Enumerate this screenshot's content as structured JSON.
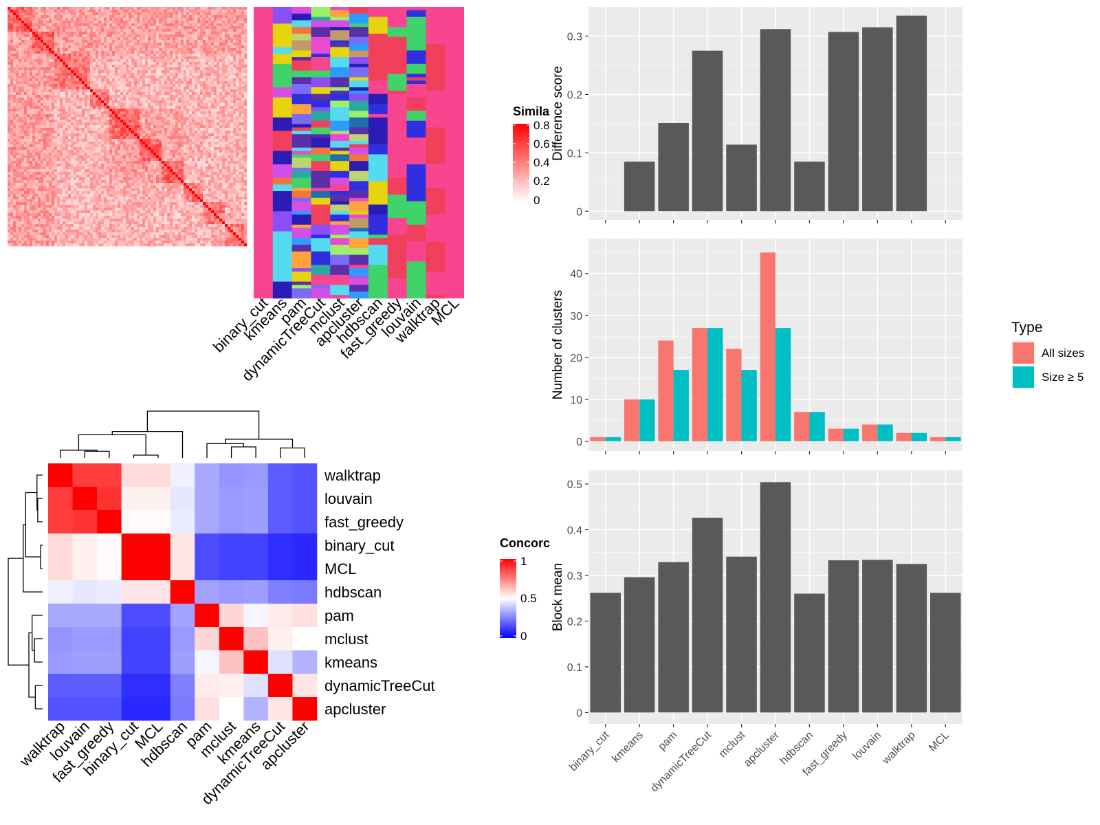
{
  "figure": {
    "similarity_panel": {
      "legend_title": "Simila",
      "legend_ticks": [
        "0.8",
        "0.6",
        "0.4",
        "0.2",
        "0"
      ],
      "legend_colors": [
        "#ffffff",
        "#ff0000"
      ],
      "method_labels": [
        "binary_cut",
        "kmeans",
        "pam",
        "dynamicTreeCut",
        "mclust",
        "apcluster",
        "hdbscan",
        "fast_greedy",
        "louvain",
        "walktrap",
        "MCL"
      ],
      "cluster_palette": [
        "#f94590",
        "#f0405b",
        "#3fd36a",
        "#2f2fe0",
        "#e6d40d",
        "#55dbf0",
        "#2a1cb4",
        "#8a4ff5",
        "#d24fe8",
        "#f2743f",
        "#1d6fb0",
        "#9df06a",
        "#c09a68",
        "#2c9cff",
        "#ffa33c",
        "#5a2fa8",
        "#2aa9a0",
        "#e84bd0",
        "#bcd56f",
        "#7a6cf6"
      ]
    },
    "concordance_panel": {
      "legend_title": "Concorc",
      "legend_ticks": [
        "1",
        "0.5",
        "0"
      ],
      "legend_colors": [
        "#0000ff",
        "#ffffff",
        "#ff0000"
      ]
    }
  },
  "chart_data": [
    {
      "type": "heatmap",
      "title": "",
      "description_of_content": "Method-by-method concordance matrix with hierarchical clustering dendrograms on top and left",
      "rows": [
        "walktrap",
        "louvain",
        "fast_greedy",
        "binary_cut",
        "MCL",
        "hdbscan",
        "pam",
        "mclust",
        "kmeans",
        "dynamicTreeCut",
        "apcluster"
      ],
      "columns": [
        "walktrap",
        "louvain",
        "fast_greedy",
        "binary_cut",
        "MCL",
        "hdbscan",
        "pam",
        "mclust",
        "kmeans",
        "dynamicTreeCut",
        "apcluster"
      ],
      "values": [
        [
          1.0,
          0.88,
          0.88,
          0.57,
          0.57,
          0.47,
          0.33,
          0.29,
          0.3,
          0.18,
          0.16
        ],
        [
          0.88,
          1.0,
          0.9,
          0.53,
          0.53,
          0.45,
          0.33,
          0.3,
          0.31,
          0.18,
          0.16
        ],
        [
          0.88,
          0.9,
          1.0,
          0.51,
          0.51,
          0.46,
          0.33,
          0.3,
          0.31,
          0.18,
          0.16
        ],
        [
          0.57,
          0.53,
          0.51,
          1.0,
          1.0,
          0.55,
          0.15,
          0.13,
          0.13,
          0.09,
          0.08
        ],
        [
          0.57,
          0.53,
          0.51,
          1.0,
          1.0,
          0.55,
          0.15,
          0.13,
          0.13,
          0.09,
          0.08
        ],
        [
          0.47,
          0.45,
          0.46,
          0.55,
          0.55,
          1.0,
          0.32,
          0.3,
          0.31,
          0.25,
          0.24
        ],
        [
          0.33,
          0.33,
          0.33,
          0.15,
          0.15,
          0.32,
          1.0,
          0.58,
          0.48,
          0.54,
          0.56
        ],
        [
          0.29,
          0.3,
          0.3,
          0.13,
          0.13,
          0.3,
          0.58,
          1.0,
          0.62,
          0.53,
          0.5
        ],
        [
          0.3,
          0.31,
          0.31,
          0.13,
          0.13,
          0.31,
          0.48,
          0.62,
          1.0,
          0.44,
          0.35
        ],
        [
          0.18,
          0.18,
          0.18,
          0.09,
          0.09,
          0.25,
          0.54,
          0.53,
          0.44,
          1.0,
          0.55
        ],
        [
          0.16,
          0.16,
          0.16,
          0.08,
          0.08,
          0.24,
          0.56,
          0.5,
          0.35,
          0.55,
          1.0
        ]
      ],
      "scale": {
        "min": 0,
        "max": 1,
        "mid": 0.5
      }
    },
    {
      "type": "bar",
      "title": "",
      "categories": [
        "binary_cut",
        "kmeans",
        "pam",
        "dynamicTreeCut",
        "mclust",
        "apcluster",
        "hdbscan",
        "fast_greedy",
        "louvain",
        "walktrap",
        "MCL"
      ],
      "values": [
        0.0,
        0.085,
        0.151,
        0.275,
        0.114,
        0.312,
        0.085,
        0.307,
        0.315,
        0.335,
        0.0
      ],
      "xlabel": "",
      "ylabel": "Difference score",
      "ylim": [
        -0.015,
        0.35
      ],
      "yticks": [
        0.0,
        0.1,
        0.2,
        0.3
      ],
      "grid": true
    },
    {
      "type": "bar",
      "title": "",
      "categories": [
        "binary_cut",
        "kmeans",
        "pam",
        "dynamicTreeCut",
        "mclust",
        "apcluster",
        "hdbscan",
        "fast_greedy",
        "louvain",
        "walktrap",
        "MCL"
      ],
      "series": [
        {
          "name": "All sizes",
          "color": "#f8766d",
          "values": [
            1,
            10,
            24,
            27,
            22,
            45,
            7,
            3,
            4,
            2,
            1
          ]
        },
        {
          "name": "Size ≥ 5",
          "color": "#00bfc4",
          "values": [
            1,
            10,
            17,
            27,
            17,
            27,
            7,
            3,
            4,
            2,
            1
          ]
        }
      ],
      "xlabel": "",
      "ylabel": "Number of clusters",
      "ylim": [
        -2.3,
        48.3
      ],
      "yticks": [
        0,
        10,
        20,
        30,
        40
      ],
      "legend": {
        "title": "Type",
        "position": "right"
      },
      "grid": true
    },
    {
      "type": "bar",
      "title": "",
      "categories": [
        "binary_cut",
        "kmeans",
        "pam",
        "dynamicTreeCut",
        "mclust",
        "apcluster",
        "hdbscan",
        "fast_greedy",
        "louvain",
        "walktrap",
        "MCL"
      ],
      "values": [
        0.262,
        0.296,
        0.329,
        0.426,
        0.341,
        0.504,
        0.26,
        0.333,
        0.334,
        0.325,
        0.262
      ],
      "xlabel": "",
      "ylabel": "Block mean",
      "ylim": [
        -0.025,
        0.53
      ],
      "yticks": [
        0.0,
        0.1,
        0.2,
        0.3,
        0.4,
        0.5
      ],
      "grid": true
    }
  ]
}
